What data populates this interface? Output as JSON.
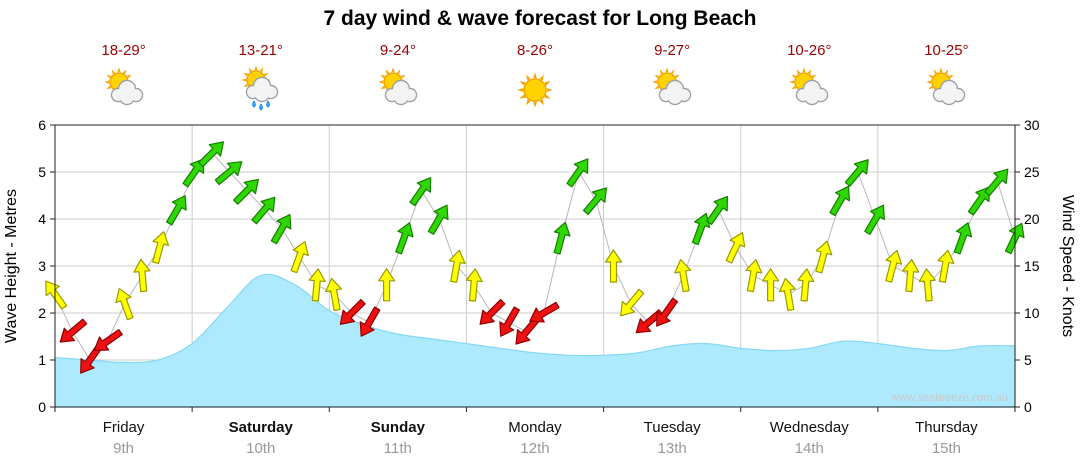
{
  "title": "7 day wind & wave forecast for Long Beach",
  "watermark": "www.seabreeze.com.au",
  "days": [
    {
      "name": "Friday",
      "date": "9th",
      "temp": "18-29°",
      "icon": "sun-cloud",
      "bold": false
    },
    {
      "name": "Saturday",
      "date": "10th",
      "temp": "13-21°",
      "icon": "sun-cloud-rain",
      "bold": true
    },
    {
      "name": "Sunday",
      "date": "11th",
      "temp": "9-24°",
      "icon": "sun-cloud",
      "bold": true
    },
    {
      "name": "Monday",
      "date": "12th",
      "temp": "8-26°",
      "icon": "sun",
      "bold": false
    },
    {
      "name": "Tuesday",
      "date": "13th",
      "temp": "9-27°",
      "icon": "sun-cloud",
      "bold": false
    },
    {
      "name": "Wednesday",
      "date": "14th",
      "temp": "10-26°",
      "icon": "sun-cloud",
      "bold": false
    },
    {
      "name": "Thursday",
      "date": "15th",
      "temp": "10-25°",
      "icon": "sun-cloud",
      "bold": false
    }
  ],
  "chart_data": {
    "type": "area",
    "overlay": "wind-arrows",
    "title": "7 day wind & wave forecast for Long Beach",
    "categories": [
      "Friday 9th",
      "Saturday 10th",
      "Sunday 11th",
      "Monday 12th",
      "Tuesday 13th",
      "Wednesday 14th",
      "Thursday 15th"
    ],
    "left_axis": {
      "label": "Wave Height - Metres",
      "range": [
        0,
        6
      ],
      "ticks": [
        0,
        1,
        2,
        3,
        4,
        5,
        6
      ]
    },
    "right_axis": {
      "label": "Wind Speed - Knots",
      "range": [
        0,
        30
      ],
      "ticks": [
        0,
        5,
        10,
        15,
        20,
        25,
        30
      ]
    },
    "wave_height_m": {
      "name": "Wave Height (m)",
      "samples_per_day": 4,
      "values": [
        1.05,
        1.0,
        0.95,
        1.0,
        1.35,
        2.1,
        2.8,
        2.6,
        2.05,
        1.75,
        1.55,
        1.45,
        1.35,
        1.25,
        1.15,
        1.1,
        1.1,
        1.15,
        1.3,
        1.35,
        1.25,
        1.2,
        1.25,
        1.4,
        1.35,
        1.25,
        1.2,
        1.3,
        1.3
      ]
    },
    "wind": {
      "name": "Wind Speed (knots)",
      "samples_per_day": 8,
      "speed_knots": [
        12,
        8,
        5,
        7,
        11,
        14,
        17,
        21,
        25,
        27,
        25,
        23,
        21,
        19,
        16,
        13,
        12,
        10,
        9,
        13,
        18,
        23,
        20,
        15,
        13,
        10,
        9,
        8,
        10,
        18,
        25,
        22,
        15,
        11,
        9,
        10,
        14,
        19,
        21,
        17,
        14,
        13,
        12,
        13,
        16,
        22,
        25,
        20,
        15,
        14,
        13,
        15,
        18,
        22,
        24,
        18
      ],
      "direction_deg": [
        325,
        230,
        215,
        235,
        340,
        355,
        15,
        30,
        35,
        45,
        50,
        45,
        40,
        30,
        20,
        5,
        350,
        225,
        210,
        0,
        20,
        35,
        30,
        10,
        5,
        225,
        210,
        220,
        240,
        15,
        35,
        40,
        0,
        220,
        230,
        215,
        350,
        20,
        35,
        25,
        10,
        0,
        350,
        5,
        15,
        30,
        40,
        30,
        15,
        5,
        355,
        10,
        20,
        35,
        40,
        25
      ]
    },
    "wind_color_rules": [
      {
        "max_knots": 10.5,
        "label": "light",
        "fill": "#ee1111",
        "stroke": "#8c0000"
      },
      {
        "max_knots": 17.5,
        "label": "moderate",
        "fill": "#ffff00",
        "stroke": "#9a9a00"
      },
      {
        "max_knots": 999,
        "label": "strong",
        "fill": "#2fd600",
        "stroke": "#117f00"
      }
    ],
    "wave_fill": "#aeeaff",
    "wave_stroke": "#85d9f5",
    "grid_color": "#cccccc",
    "frame_color": "#222222",
    "connector_color": "#b8b8b8",
    "temp_color": "#990000",
    "legend": "none",
    "grid": true
  }
}
